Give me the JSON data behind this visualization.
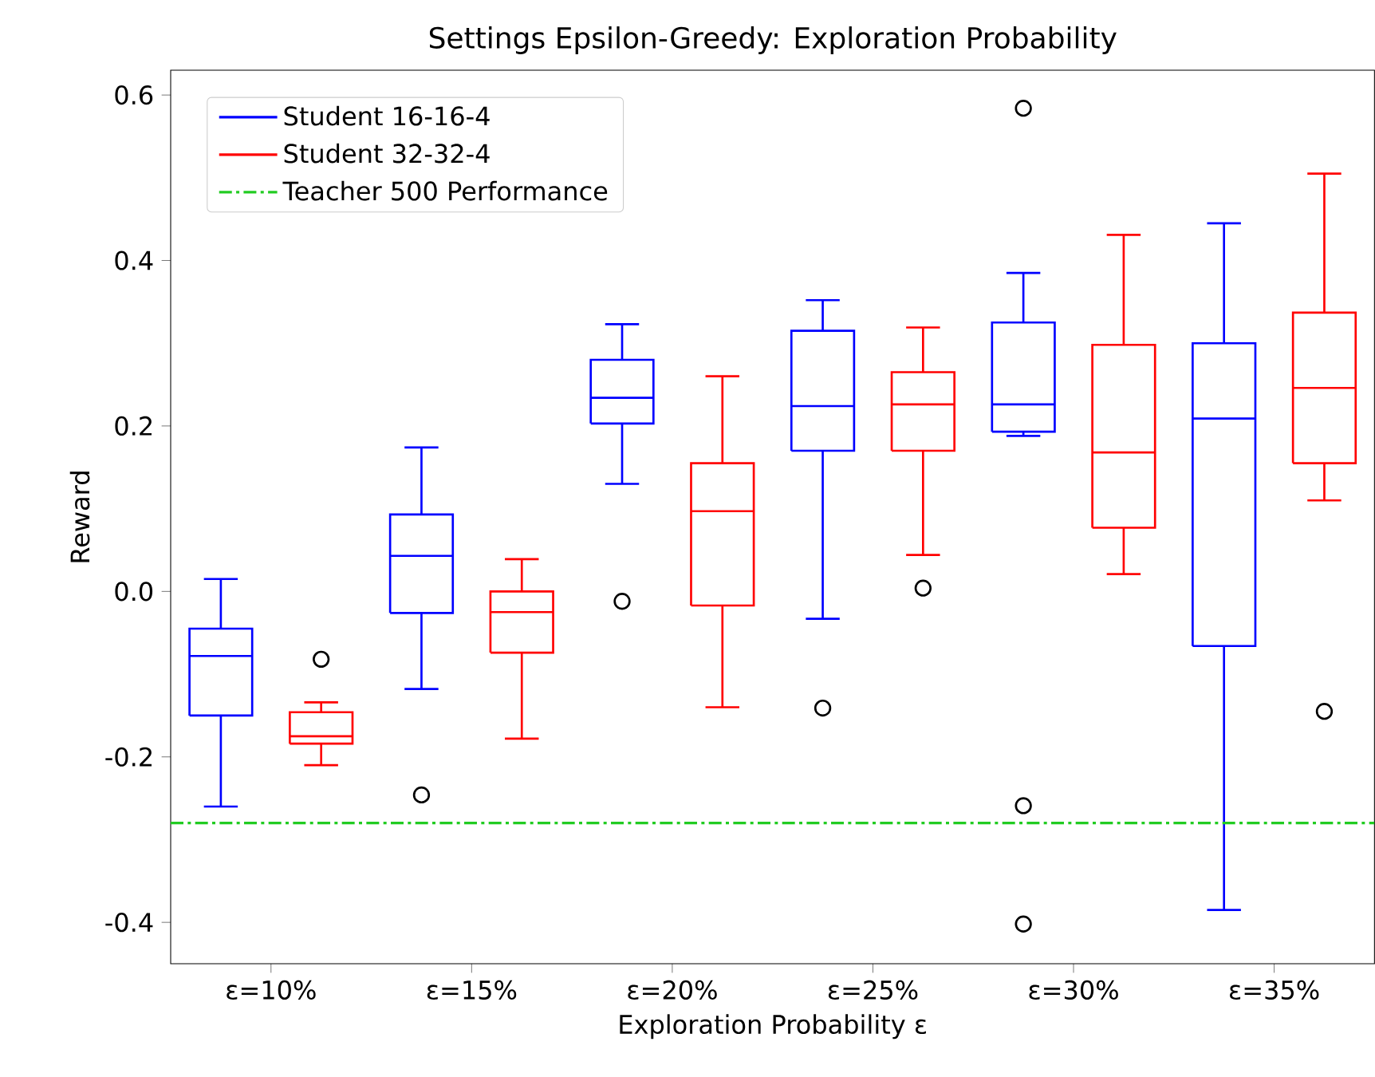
{
  "chart_data": {
    "type": "box",
    "title": "Settings Epsilon-Greedy: Exploration Probability",
    "xlabel": "Exploration Probability ε",
    "ylabel": "Reward",
    "categories": [
      "ε=10%",
      "ε=15%",
      "ε=20%",
      "ε=25%",
      "ε=30%",
      "ε=35%"
    ],
    "ylim": [
      -0.45,
      0.63
    ],
    "yticks": [
      -0.4,
      -0.2,
      {
        "value": 0,
        "label": "0.0"
      },
      0.2,
      0.4,
      0.6
    ],
    "series": [
      {
        "name": "Student 16-16-4",
        "color": "#0000ff",
        "boxes": [
          {
            "low": -0.26,
            "q1": -0.15,
            "median": -0.078,
            "q3": -0.045,
            "high": 0.015
          },
          {
            "low": -0.118,
            "q1": -0.026,
            "median": 0.043,
            "q3": 0.093,
            "high": 0.174,
            "outliers": [
              -0.246
            ]
          },
          {
            "low": 0.13,
            "q1": 0.203,
            "median": 0.234,
            "q3": 0.28,
            "high": 0.323,
            "outliers": [
              -0.012
            ]
          },
          {
            "low": -0.033,
            "q1": 0.17,
            "median": 0.224,
            "q3": 0.315,
            "high": 0.352,
            "outliers": [
              -0.141
            ]
          },
          {
            "low": 0.188,
            "q1": 0.193,
            "median": 0.226,
            "q3": 0.325,
            "high": 0.385,
            "outliers": [
              0.584,
              -0.259,
              -0.402
            ]
          },
          {
            "low": -0.385,
            "q1": -0.066,
            "median": 0.209,
            "q3": 0.3,
            "high": 0.445
          }
        ]
      },
      {
        "name": "Student 32-32-4",
        "color": "#ff0000",
        "boxes": [
          {
            "low": -0.21,
            "q1": -0.184,
            "median": -0.175,
            "q3": -0.146,
            "high": -0.134,
            "outliers": [
              -0.082
            ]
          },
          {
            "low": -0.178,
            "q1": -0.074,
            "median": -0.025,
            "q3": 0.0,
            "high": 0.039
          },
          {
            "low": -0.14,
            "q1": -0.017,
            "median": 0.097,
            "q3": 0.155,
            "high": 0.26
          },
          {
            "low": 0.044,
            "q1": 0.17,
            "median": 0.226,
            "q3": 0.265,
            "high": 0.319,
            "outliers": [
              0.004
            ]
          },
          {
            "low": 0.021,
            "q1": 0.077,
            "median": 0.168,
            "q3": 0.298,
            "high": 0.431
          },
          {
            "low": 0.11,
            "q1": 0.155,
            "median": 0.246,
            "q3": 0.337,
            "high": 0.505,
            "outliers": [
              -0.145
            ]
          }
        ]
      }
    ],
    "ref_lines": [
      {
        "axis": "y",
        "value": -0.28,
        "label": "Teacher 500 Performance",
        "color": "#22cc22",
        "line_style": "dashdot"
      }
    ],
    "legend": "top left"
  }
}
